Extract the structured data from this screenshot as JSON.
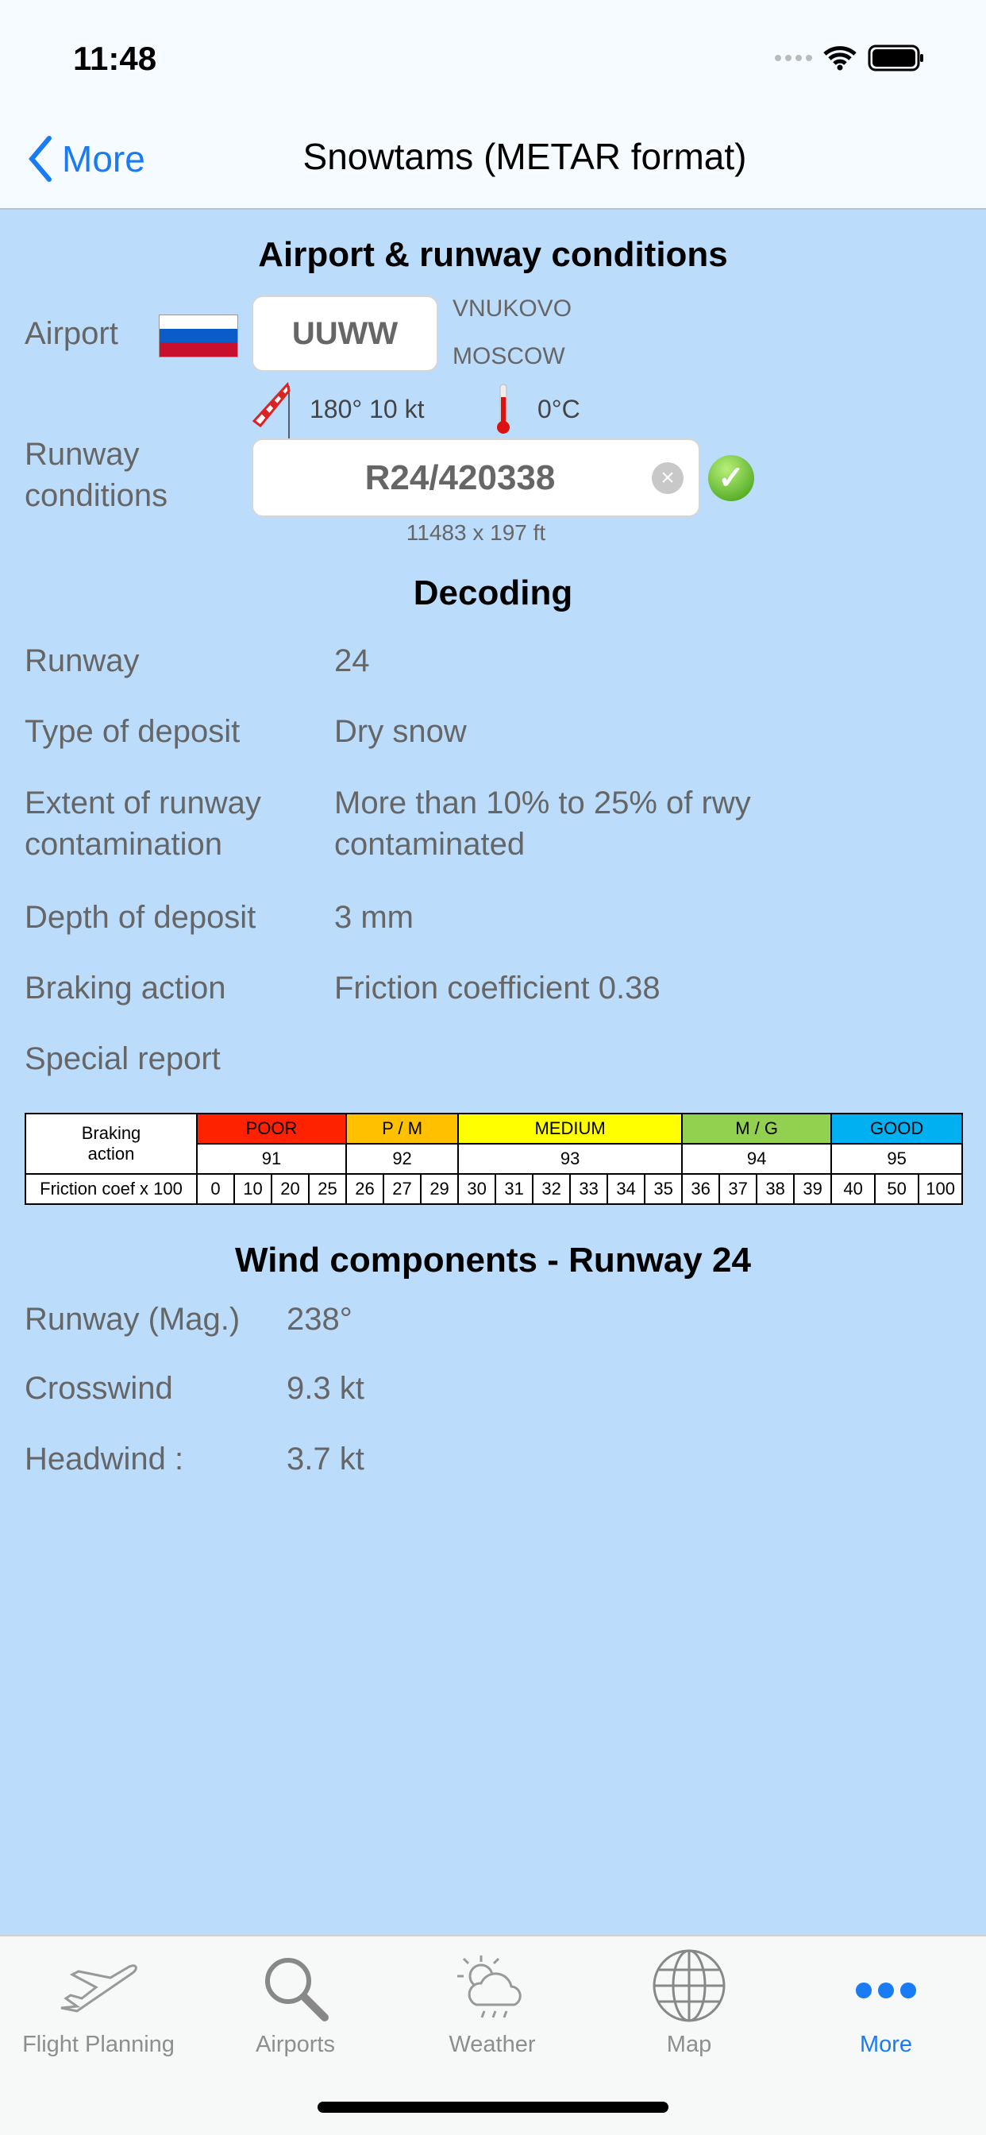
{
  "status": {
    "time": "11:48"
  },
  "nav": {
    "back_label": "More",
    "title": "Snowtams (METAR format)"
  },
  "section1": {
    "heading": "Airport & runway conditions",
    "airport_label": "Airport",
    "airport_code": "UUWW",
    "airport_name": "VNUKOVO",
    "city": "MOSCOW",
    "wind": "180° 10 kt",
    "temperature": "0°C",
    "runway_label_1": "Runway",
    "runway_label_2": "conditions",
    "runway_code": "R24/420338",
    "runway_size": "11483 x 197 ft"
  },
  "decoding": {
    "heading": "Decoding",
    "rows": [
      {
        "label": "Runway",
        "value": "24"
      },
      {
        "label": "Type of deposit",
        "value": "Dry snow"
      },
      {
        "label_1": "Extent of runway",
        "label_2": "contamination",
        "value_1": "More than 10% to 25% of rwy",
        "value_2": "contaminated"
      },
      {
        "label": "Depth of deposit",
        "value": "3 mm"
      },
      {
        "label": "Braking action",
        "value": "Friction coefficient 0.38"
      },
      {
        "label": "Special report",
        "value": ""
      }
    ]
  },
  "braking_table": {
    "header_1": "Braking",
    "header_2": "action",
    "row3_label": "Friction coef x 100",
    "groups": [
      {
        "name": "POOR",
        "code": "91",
        "color": "#ff2200",
        "values": [
          "0",
          "10",
          "20",
          "25"
        ]
      },
      {
        "name": "P / M",
        "code": "92",
        "color": "#ffc000",
        "values": [
          "26",
          "27",
          "29"
        ]
      },
      {
        "name": "MEDIUM",
        "code": "93",
        "color": "#ffff00",
        "values": [
          "30",
          "31",
          "32",
          "33",
          "34",
          "35"
        ]
      },
      {
        "name": "M / G",
        "code": "94",
        "color": "#92d050",
        "values": [
          "36",
          "37",
          "38",
          "39"
        ]
      },
      {
        "name": "GOOD",
        "code": "95",
        "color": "#00b0f0",
        "values": [
          "40",
          "50",
          "100"
        ]
      }
    ]
  },
  "wind": {
    "heading": "Wind components - Runway 24",
    "rows": [
      {
        "label": "Runway (Mag.)",
        "value": "238°"
      },
      {
        "label": "Crosswind",
        "value": "9.3 kt"
      },
      {
        "label": "Headwind :",
        "value": "3.7 kt"
      }
    ]
  },
  "tabs": [
    {
      "label": "Flight Planning",
      "icon": "airplane-icon"
    },
    {
      "label": "Airports",
      "icon": "magnifier-icon"
    },
    {
      "label": "Weather",
      "icon": "sun-cloud-icon"
    },
    {
      "label": "Map",
      "icon": "globe-icon"
    },
    {
      "label": "More",
      "icon": "more-dots-icon",
      "active": true
    }
  ],
  "colors": {
    "accent": "#1a7cf5",
    "background": "#bcdcfb"
  }
}
